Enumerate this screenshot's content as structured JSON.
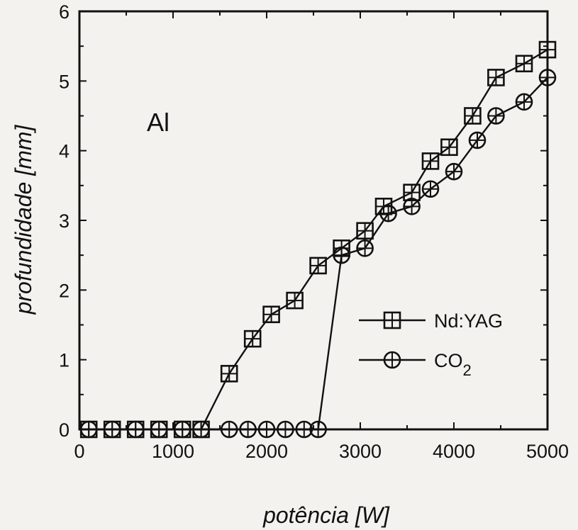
{
  "chart_data": {
    "type": "line",
    "xlabel": "potência [W]",
    "ylabel": "profundidade [mm]",
    "annotation": "Al",
    "xlim": [
      0,
      5000
    ],
    "ylim": [
      0,
      6
    ],
    "x_ticks": [
      "0",
      "1000",
      "2000",
      "3000",
      "4000",
      "5000"
    ],
    "y_ticks": [
      "0",
      "1",
      "2",
      "3",
      "4",
      "5",
      "6"
    ],
    "grid": false,
    "legend_position": "lower-right",
    "series": [
      {
        "name": "Nd:YAG",
        "marker": "square",
        "points": [
          [
            100,
            0
          ],
          [
            350,
            0
          ],
          [
            600,
            0
          ],
          [
            850,
            0
          ],
          [
            1100,
            0
          ],
          [
            1300,
            0
          ],
          [
            1600,
            0.8
          ],
          [
            1850,
            1.3
          ],
          [
            2050,
            1.65
          ],
          [
            2300,
            1.85
          ],
          [
            2550,
            2.35
          ],
          [
            2800,
            2.6
          ],
          [
            3050,
            2.85
          ],
          [
            3250,
            3.2
          ],
          [
            3550,
            3.4
          ],
          [
            3750,
            3.85
          ],
          [
            3950,
            4.05
          ],
          [
            4200,
            4.5
          ],
          [
            4450,
            5.05
          ],
          [
            4750,
            5.25
          ],
          [
            5000,
            5.45
          ]
        ]
      },
      {
        "name": "CO",
        "name_subscript": "2",
        "marker": "circle",
        "points": [
          [
            100,
            0
          ],
          [
            350,
            0
          ],
          [
            600,
            0
          ],
          [
            850,
            0
          ],
          [
            1100,
            0
          ],
          [
            1300,
            0
          ],
          [
            1600,
            0
          ],
          [
            1800,
            0
          ],
          [
            2000,
            0
          ],
          [
            2200,
            0
          ],
          [
            2400,
            0
          ],
          [
            2550,
            0
          ],
          [
            2800,
            2.5
          ],
          [
            3050,
            2.6
          ],
          [
            3300,
            3.1
          ],
          [
            3550,
            3.2
          ],
          [
            3750,
            3.45
          ],
          [
            4000,
            3.7
          ],
          [
            4250,
            4.15
          ],
          [
            4450,
            4.5
          ],
          [
            4750,
            4.7
          ],
          [
            5000,
            5.05
          ]
        ]
      }
    ]
  }
}
